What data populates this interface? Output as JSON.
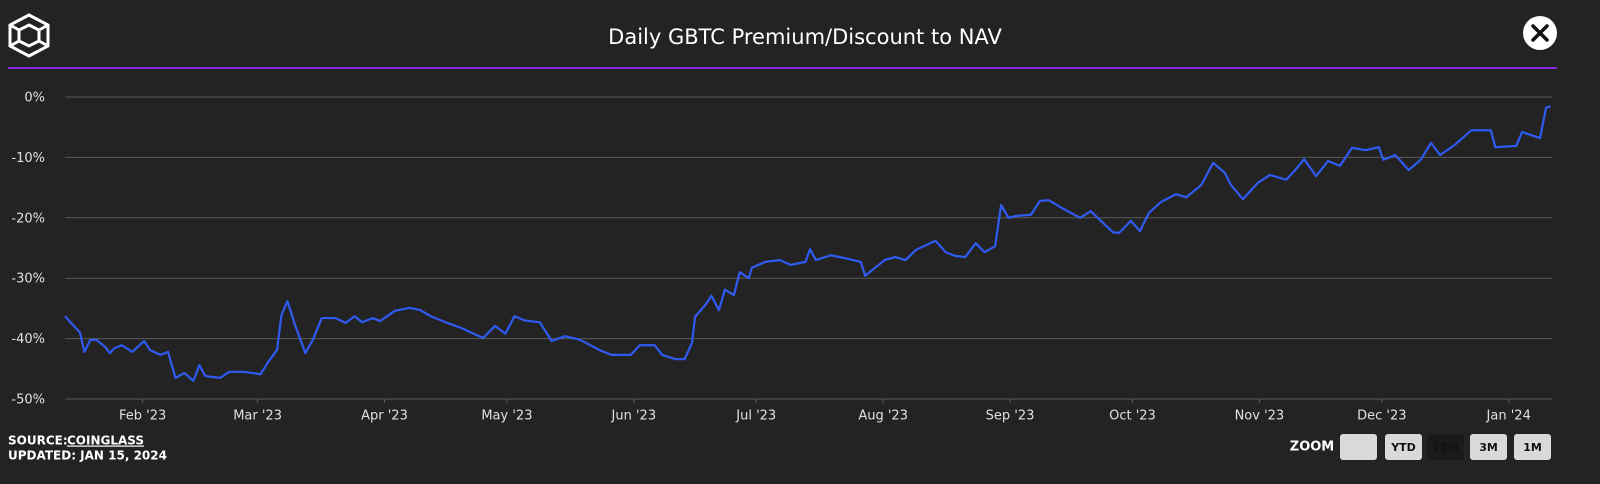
{
  "chart_data": {
    "type": "line",
    "title": "Daily GBTC Premium/Discount to NAV",
    "x": [
      2023.033,
      2023.043,
      2023.046,
      2023.05,
      2023.054,
      2023.06,
      2023.063,
      2023.066,
      2023.071,
      2023.078,
      2023.086,
      2023.09,
      2023.097,
      2023.102,
      2023.107,
      2023.113,
      2023.119,
      2023.123,
      2023.127,
      2023.137,
      2023.143,
      2023.153,
      2023.164,
      2023.169,
      2023.175,
      2023.178,
      2023.182,
      2023.187,
      2023.194,
      2023.199,
      2023.205,
      2023.214,
      2023.221,
      2023.227,
      2023.232,
      2023.239,
      2023.244,
      2023.254,
      2023.264,
      2023.271,
      2023.278,
      2023.288,
      2023.298,
      2023.313,
      2023.321,
      2023.328,
      2023.334,
      2023.341,
      2023.351,
      2023.359,
      2023.368,
      2023.378,
      2023.391,
      2023.399,
      2023.412,
      2023.418,
      2023.428,
      2023.433,
      2023.442,
      2023.448,
      2023.453,
      2023.455,
      2023.462,
      2023.466,
      2023.471,
      2023.475,
      2023.481,
      2023.485,
      2023.491,
      2023.493,
      2023.502,
      2023.512,
      2023.519,
      2023.529,
      2023.532,
      2023.536,
      2023.546,
      2023.556,
      2023.566,
      2023.569,
      2023.582,
      2023.589,
      2023.596,
      2023.603,
      2023.616,
      2023.623,
      2023.629,
      2023.636,
      2023.643,
      2023.649,
      2023.656,
      2023.66,
      2023.665,
      2023.67,
      2023.68,
      2023.686,
      2023.692,
      2023.703,
      2023.713,
      2023.72,
      2023.735,
      2023.739,
      2023.747,
      2023.753,
      2023.759,
      2023.767,
      2023.777,
      2023.784,
      2023.794,
      2023.802,
      2023.81,
      2023.814,
      2023.822,
      2023.832,
      2023.84,
      2023.851,
      2023.857,
      2023.863,
      2023.871,
      2023.879,
      2023.887,
      2023.895,
      2023.904,
      2023.913,
      2023.916,
      2023.924,
      2023.933,
      2023.941,
      2023.948,
      2023.954,
      2023.964,
      2023.975,
      2023.988,
      2023.991,
      2024.005,
      2024.009,
      2024.021,
      2024.025,
      2024.028
    ],
    "series": [
      {
        "name": "GBTC Premium/Discount",
        "color": "#2f5bf2",
        "values": [
          -36.3,
          -39,
          -42.2,
          -40.2,
          -40.2,
          -41.4,
          -42.4,
          -41.6,
          -41.1,
          -42.2,
          -40.4,
          -41.9,
          -42.7,
          -42.2,
          -46.5,
          -45.7,
          -47,
          -44.4,
          -46.2,
          -46.5,
          -45.5,
          -45.5,
          -45.9,
          -43.9,
          -41.9,
          -36.1,
          -33.8,
          -37.7,
          -42.4,
          -40.2,
          -36.6,
          -36.6,
          -37.4,
          -36.3,
          -37.3,
          -36.6,
          -37.1,
          -35.4,
          -34.9,
          -35.3,
          -36.3,
          -37.3,
          -38.2,
          -39.9,
          -37.9,
          -39.2,
          -36.3,
          -37,
          -37.3,
          -40.4,
          -39.6,
          -40.2,
          -41.9,
          -42.7,
          -42.7,
          -41.1,
          -41.1,
          -42.7,
          -43.4,
          -43.4,
          -40.7,
          -36.4,
          -34.4,
          -32.9,
          -35.3,
          -31.9,
          -32.8,
          -29,
          -30,
          -28.3,
          -27.3,
          -27,
          -27.8,
          -27.3,
          -25.2,
          -27,
          -26.2,
          -26.7,
          -27.3,
          -29.6,
          -27,
          -26.5,
          -27,
          -25.3,
          -23.8,
          -25.7,
          -26.3,
          -26.5,
          -24.2,
          -25.7,
          -24.7,
          -17.9,
          -20,
          -19.7,
          -19.5,
          -17.2,
          -17.1,
          -18.7,
          -20,
          -18.9,
          -22.4,
          -22.5,
          -20.5,
          -22.2,
          -19.2,
          -17.4,
          -16.1,
          -16.6,
          -14.6,
          -10.9,
          -12.6,
          -14.6,
          -16.9,
          -14.2,
          -12.9,
          -13.7,
          -12.1,
          -10.3,
          -13.1,
          -10.6,
          -11.4,
          -8.4,
          -8.8,
          -8.3,
          -10.4,
          -9.6,
          -12.1,
          -10.4,
          -7.6,
          -9.6,
          -7.9,
          -5.5,
          -5.5,
          -8.3,
          -8.1,
          -5.8,
          -6.8,
          -1.8,
          -1.5
        ]
      }
    ],
    "xlim": [
      2023.033,
      2024.029
    ],
    "xticks": [
      {
        "value": 2023.085,
        "label": "Feb '23"
      },
      {
        "value": 2023.162,
        "label": "Mar '23"
      },
      {
        "value": 2023.247,
        "label": "Apr '23"
      },
      {
        "value": 2023.329,
        "label": "May '23"
      },
      {
        "value": 2023.414,
        "label": "Jun '23"
      },
      {
        "value": 2023.496,
        "label": "Jul '23"
      },
      {
        "value": 2023.581,
        "label": "Aug '23"
      },
      {
        "value": 2023.666,
        "label": "Sep '23"
      },
      {
        "value": 2023.748,
        "label": "Oct '23"
      },
      {
        "value": 2023.833,
        "label": "Nov '23"
      },
      {
        "value": 2023.915,
        "label": "Dec '23"
      },
      {
        "value": 2024.0,
        "label": "Jan '24"
      }
    ],
    "ylim": [
      -50,
      0
    ],
    "yticks": [
      {
        "value": 0,
        "label": "0%"
      },
      {
        "value": -10,
        "label": "-10%"
      },
      {
        "value": -20,
        "label": "-20%"
      },
      {
        "value": -30,
        "label": "-30%"
      },
      {
        "value": -40,
        "label": "-40%"
      },
      {
        "value": -50,
        "label": "-50%"
      }
    ],
    "grid": true
  },
  "footer": {
    "source_label": "SOURCE:",
    "source": "COINGLASS",
    "updated": "UPDATED: JAN 15, 2024"
  },
  "zoom": {
    "label": "ZOOM",
    "buttons": [
      "YTD",
      "12M",
      "3M",
      "1M"
    ],
    "selected": 1
  }
}
